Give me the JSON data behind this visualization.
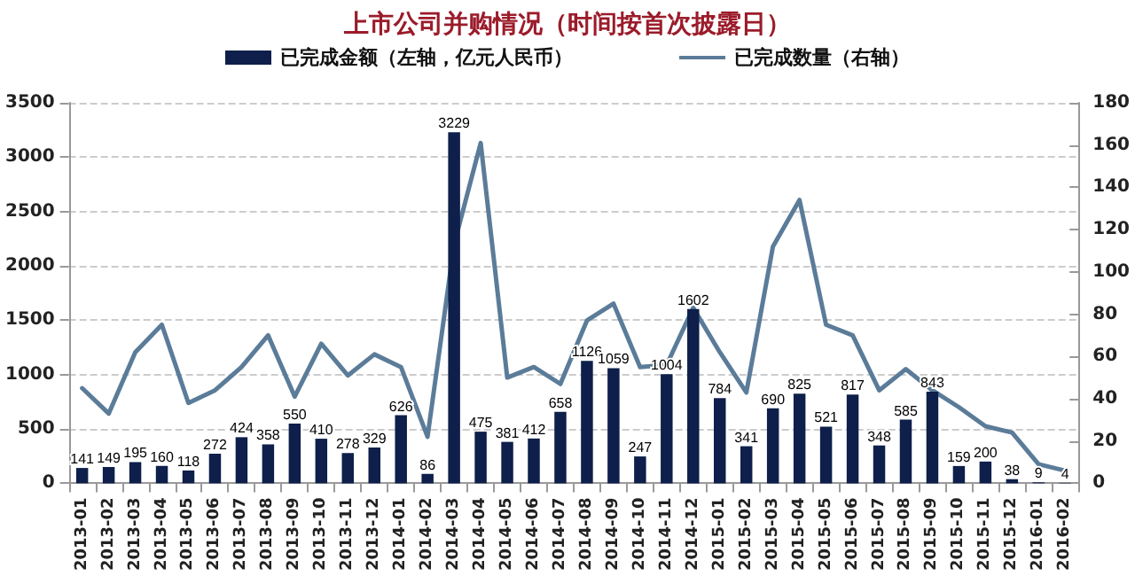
{
  "chart_data": {
    "type": "bar",
    "title": "上市公司并购情况（时间按首次披露日）",
    "categories": [
      "2013-01",
      "2013-02",
      "2013-03",
      "2013-04",
      "2013-05",
      "2013-06",
      "2013-07",
      "2013-08",
      "2013-09",
      "2013-10",
      "2013-11",
      "2013-12",
      "2014-01",
      "2014-02",
      "2014-03",
      "2014-04",
      "2014-05",
      "2014-06",
      "2014-07",
      "2014-08",
      "2014-09",
      "2014-10",
      "2014-11",
      "2014-12",
      "2015-01",
      "2015-02",
      "2015-03",
      "2015-04",
      "2015-05",
      "2015-06",
      "2015-07",
      "2015-08",
      "2015-09",
      "2015-10",
      "2015-11",
      "2015-12",
      "2016-01",
      "2016-02"
    ],
    "series": [
      {
        "name": "已完成金额（左轴，亿元人民币）",
        "color": "#0d1f4a",
        "data_labels": true,
        "values": [
          141,
          149,
          195,
          160,
          118,
          272,
          424,
          358,
          550,
          410,
          278,
          329,
          626,
          86,
          3229,
          475,
          381,
          412,
          658,
          1126,
          1059,
          247,
          1004,
          1602,
          784,
          341,
          690,
          825,
          521,
          817,
          348,
          585,
          843,
          159,
          200,
          38,
          9,
          4
        ]
      },
      {
        "name": "已完成数量（右轴）",
        "type": "line",
        "axis": "y2",
        "color": "#5b7c99",
        "values": [
          45,
          33,
          62,
          75,
          38,
          44,
          55,
          70,
          41,
          66,
          51,
          61,
          55,
          22,
          113,
          161,
          50,
          55,
          47,
          77,
          85,
          55,
          56,
          83,
          62,
          43,
          112,
          134,
          75,
          70,
          44,
          54,
          44,
          36,
          27,
          24,
          9,
          6
        ]
      }
    ],
    "ylim": [
      0,
      3500
    ],
    "yticks": [
      0,
      500,
      1000,
      1500,
      2000,
      2500,
      3000,
      3500
    ],
    "y2lim": [
      0,
      180
    ],
    "y2ticks": [
      0,
      20,
      40,
      60,
      80,
      100,
      120,
      140,
      160,
      180
    ],
    "grid": "y",
    "legend": "top",
    "marker": "none",
    "line_style": "solid"
  }
}
